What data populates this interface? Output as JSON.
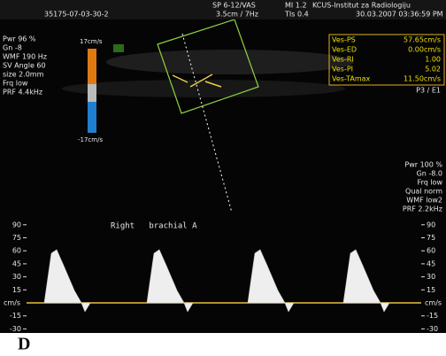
{
  "header": {
    "probe": "SP 6-12/VAS",
    "mi": "MI 1.2",
    "institution": "KCUS-Institut za Radiologiju",
    "patient_id": "35175-07-03-30-2",
    "depth": "3.5cm / 7Hz",
    "tis": "TIs 0.4",
    "datetime": "30.03.2007 03:36:59 PM"
  },
  "left_params": [
    "Pwr 96 %",
    "Gn -8",
    "WMF 190 Hz",
    "SV Angle 60",
    "size 2.0mm",
    "Frq low",
    "PRF 4.4kHz"
  ],
  "color_bar": {
    "top": "17cm/s",
    "bottom": "-17cm/s"
  },
  "measurements": [
    [
      "Ves-PS",
      "57.65cm/s"
    ],
    [
      "Ves-ED",
      "0.00cm/s"
    ],
    [
      "Ves-RI",
      "1.00"
    ],
    [
      "Ves-PI",
      "5.02"
    ],
    [
      "Ves-TAmax",
      "11.50cm/s"
    ]
  ],
  "probe_setting": "P3 / E1",
  "right_params": [
    "Pwr 100 %",
    "Gn -8.0",
    "Frq low",
    "Qual norm",
    "WMF low2",
    "PRF 2.2kHz"
  ],
  "spectrum_label": "Right   brachial A",
  "scale": {
    "ticks": [
      90,
      75,
      60,
      45,
      30,
      15,
      -15,
      -30
    ],
    "unit": "cm/s"
  },
  "panel_label": "D"
}
